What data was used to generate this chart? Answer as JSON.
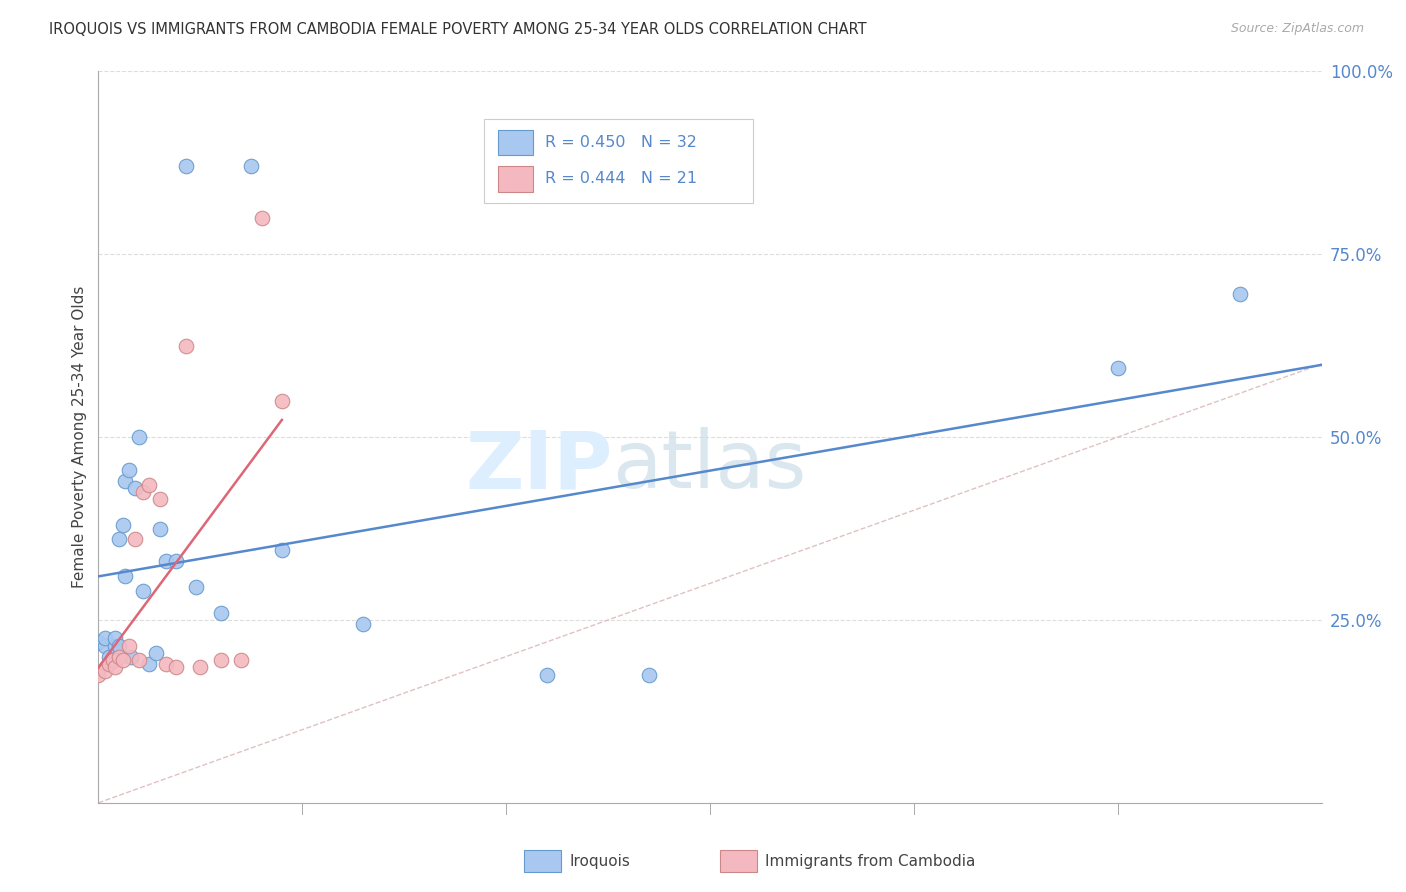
{
  "title": "IROQUOIS VS IMMIGRANTS FROM CAMBODIA FEMALE POVERTY AMONG 25-34 YEAR OLDS CORRELATION CHART",
  "source": "Source: ZipAtlas.com",
  "ylabel": "Female Poverty Among 25-34 Year Olds",
  "blue_color": "#a8c8f0",
  "blue_edge_color": "#6699cc",
  "pink_color": "#f4b8c0",
  "pink_edge_color": "#cc8888",
  "blue_line_color": "#5588cc",
  "pink_line_color": "#dd6677",
  "diag_color": "#ddbbbb",
  "grid_color": "#dddddd",
  "legend_r1": "R = 0.450",
  "legend_n1": "N = 32",
  "legend_r2": "R = 0.444",
  "legend_n2": "N = 21",
  "iroquois_x": [
    0.0,
    0.003,
    0.003,
    0.005,
    0.007,
    0.008,
    0.008,
    0.01,
    0.01,
    0.012,
    0.013,
    0.013,
    0.015,
    0.016,
    0.018,
    0.02,
    0.022,
    0.025,
    0.028,
    0.03,
    0.033,
    0.038,
    0.043,
    0.048,
    0.06,
    0.075,
    0.09,
    0.13,
    0.22,
    0.27,
    0.5,
    0.56
  ],
  "iroquois_y": [
    0.22,
    0.215,
    0.225,
    0.2,
    0.195,
    0.215,
    0.225,
    0.215,
    0.36,
    0.38,
    0.31,
    0.44,
    0.455,
    0.2,
    0.43,
    0.5,
    0.29,
    0.19,
    0.205,
    0.375,
    0.33,
    0.33,
    0.87,
    0.295,
    0.26,
    0.87,
    0.345,
    0.245,
    0.175,
    0.175,
    0.595,
    0.695
  ],
  "cambodia_x": [
    0.0,
    0.003,
    0.005,
    0.007,
    0.008,
    0.01,
    0.012,
    0.015,
    0.018,
    0.02,
    0.022,
    0.025,
    0.03,
    0.033,
    0.038,
    0.043,
    0.05,
    0.06,
    0.07,
    0.08,
    0.09
  ],
  "cambodia_y": [
    0.175,
    0.18,
    0.19,
    0.195,
    0.185,
    0.2,
    0.195,
    0.215,
    0.36,
    0.195,
    0.425,
    0.435,
    0.415,
    0.19,
    0.185,
    0.625,
    0.185,
    0.195,
    0.195,
    0.8,
    0.55
  ],
  "xlim": [
    0,
    0.6
  ],
  "ylim": [
    0,
    1.0
  ],
  "ytick_positions": [
    0.0,
    0.25,
    0.5,
    0.75,
    1.0
  ],
  "ytick_labels_right": [
    "",
    "25.0%",
    "50.0%",
    "75.0%",
    "100.0%"
  ]
}
